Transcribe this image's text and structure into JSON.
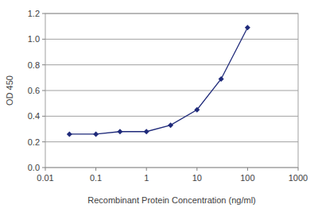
{
  "chart_data": {
    "type": "line",
    "x_label": "Recombinant Protein Concentration (ng/ml)",
    "y_label": "OD 450",
    "x": [
      0.03,
      0.1,
      0.3,
      1,
      3,
      10,
      30,
      100
    ],
    "values": [
      0.26,
      0.26,
      0.28,
      0.28,
      0.33,
      0.45,
      0.69,
      1.09
    ],
    "color": "#1f2a7a",
    "marker": "diamond",
    "log": "x",
    "grid": true,
    "xlim": [
      0.01,
      1000
    ],
    "ylim": [
      0,
      1.2
    ],
    "xticks": [
      0.01,
      0.1,
      1,
      10,
      100,
      1000
    ],
    "yticks": [
      {
        "value": 0,
        "label": "0.0"
      },
      0.2,
      0.4,
      0.6,
      0.8,
      {
        "value": 1,
        "label": "1.0"
      },
      1.2
    ]
  }
}
